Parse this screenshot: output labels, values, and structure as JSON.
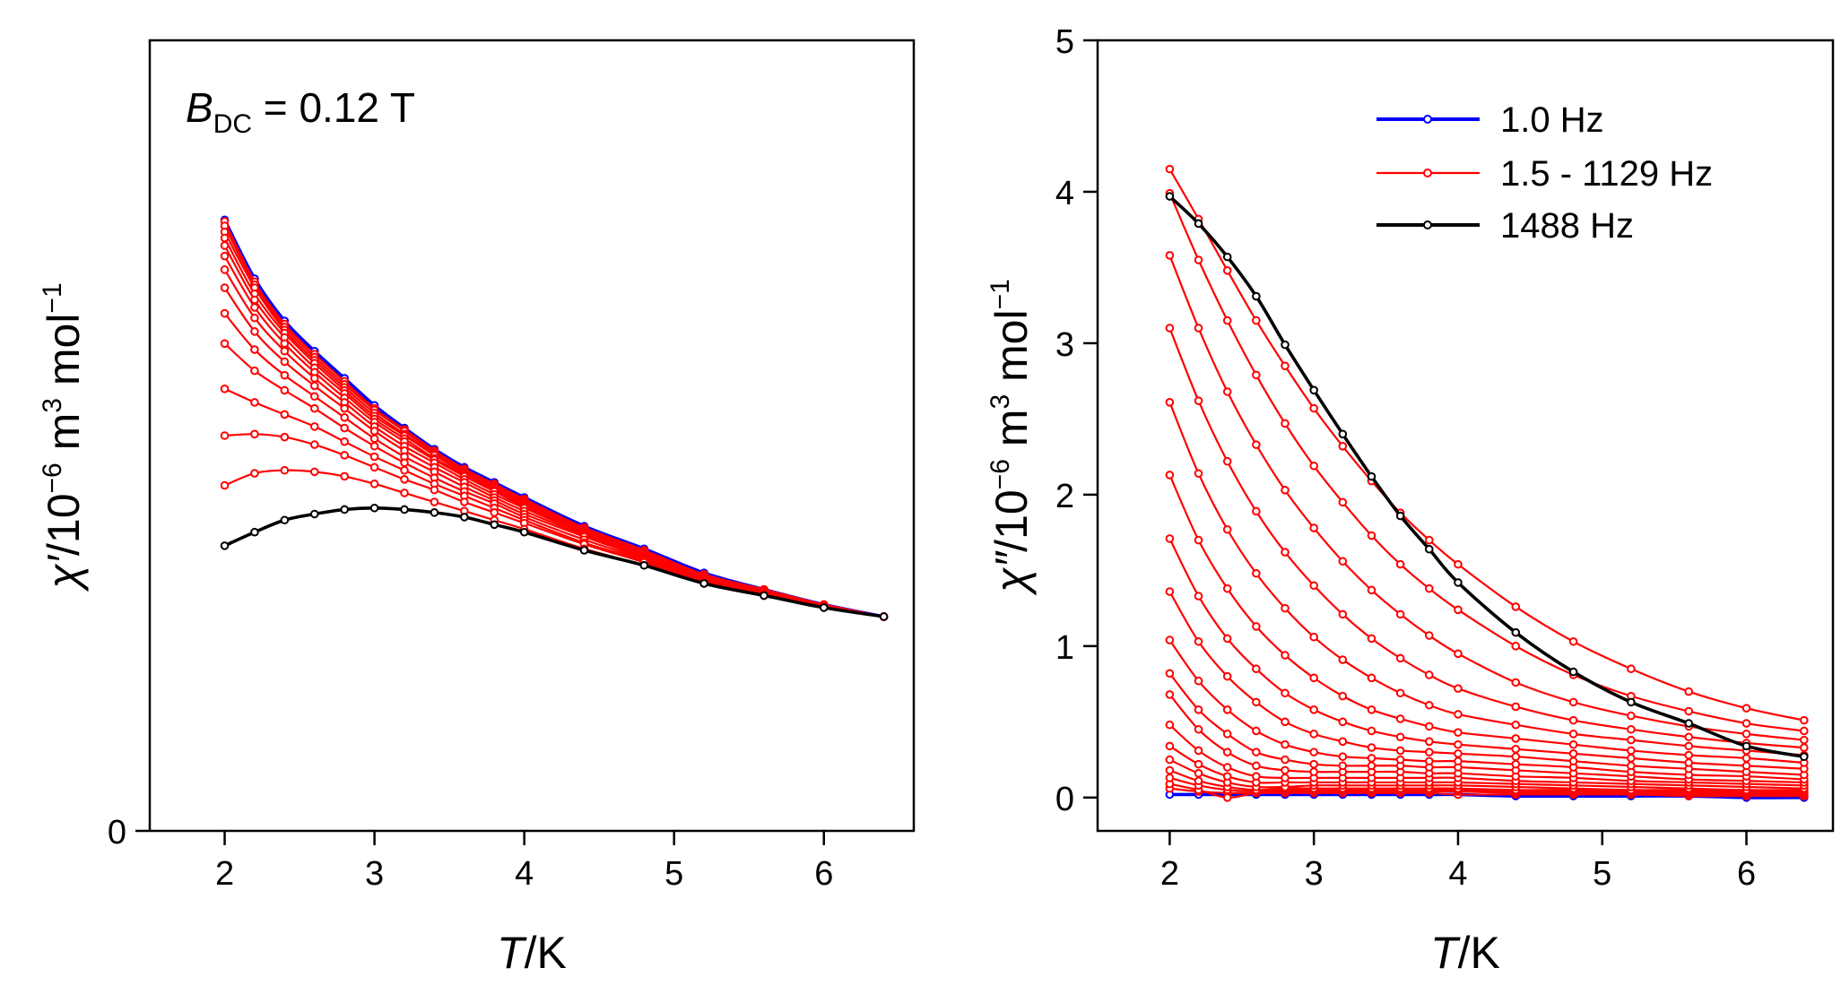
{
  "chart_data": [
    {
      "type": "line",
      "title": "",
      "xlabel_italic": "T",
      "xlabel_unit": "/K",
      "ylabel_symbol": "χ′",
      "ylabel_text": "/10",
      "ylabel_exp1": "−6",
      "ylabel_mid": " m",
      "ylabel_exp2": "3",
      "ylabel_mid2": " mol",
      "ylabel_exp3": "−1",
      "annotation_b": "B",
      "annotation_sub": "DC",
      "annotation_rest": " = 0.12 T",
      "xlim": [
        1.5,
        6.6
      ],
      "ylim": [
        0,
        5.24
      ],
      "xticks": [
        "2",
        "3",
        "4",
        "5",
        "6"
      ],
      "yticks": [
        "0"
      ],
      "x": [
        2.0,
        2.2,
        2.4,
        2.6,
        2.8,
        3.0,
        3.2,
        3.4,
        3.6,
        3.8,
        4.0,
        4.4,
        4.8,
        5.2,
        5.6,
        6.0,
        6.4
      ],
      "series": [
        {
          "name": "1.0 Hz",
          "color": "#0000ff",
          "values": [
            4.05,
            3.66,
            3.38,
            3.18,
            3.0,
            2.82,
            2.67,
            2.53,
            2.41,
            2.31,
            2.21,
            2.02,
            1.87,
            1.71,
            1.6,
            1.5,
            1.42
          ]
        },
        {
          "name": "1.5 - 1129 Hz",
          "color": "#ff0000",
          "values": [
            4.04,
            3.64,
            3.36,
            3.16,
            2.98,
            2.8,
            2.66,
            2.52,
            2.4,
            2.3,
            2.2,
            2.01,
            1.86,
            1.7,
            1.6,
            1.5,
            1.42
          ]
        },
        {
          "name": "",
          "color": "#ff0000",
          "values": [
            4.01,
            3.62,
            3.34,
            3.14,
            2.96,
            2.79,
            2.65,
            2.51,
            2.39,
            2.29,
            2.19,
            2.01,
            1.86,
            1.7,
            1.6,
            1.5,
            1.42
          ]
        },
        {
          "name": "",
          "color": "#ff0000",
          "values": [
            3.97,
            3.6,
            3.32,
            3.12,
            2.94,
            2.77,
            2.63,
            2.5,
            2.38,
            2.28,
            2.18,
            2.0,
            1.85,
            1.7,
            1.6,
            1.5,
            1.42
          ]
        },
        {
          "name": "",
          "color": "#ff0000",
          "values": [
            3.93,
            3.56,
            3.3,
            3.1,
            2.92,
            2.75,
            2.62,
            2.49,
            2.37,
            2.27,
            2.17,
            2.0,
            1.85,
            1.69,
            1.59,
            1.5,
            1.42
          ]
        },
        {
          "name": "",
          "color": "#ff0000",
          "values": [
            3.88,
            3.52,
            3.27,
            3.07,
            2.9,
            2.73,
            2.6,
            2.47,
            2.36,
            2.26,
            2.16,
            1.99,
            1.84,
            1.69,
            1.59,
            1.5,
            1.42
          ]
        },
        {
          "name": "",
          "color": "#ff0000",
          "values": [
            3.81,
            3.47,
            3.23,
            3.04,
            2.87,
            2.71,
            2.58,
            2.46,
            2.35,
            2.25,
            2.15,
            1.98,
            1.84,
            1.69,
            1.59,
            1.5,
            1.42
          ]
        },
        {
          "name": "",
          "color": "#ff0000",
          "values": [
            3.72,
            3.4,
            3.18,
            3.0,
            2.84,
            2.68,
            2.55,
            2.44,
            2.33,
            2.23,
            2.14,
            1.97,
            1.83,
            1.68,
            1.59,
            1.5,
            1.42
          ]
        },
        {
          "name": "",
          "color": "#ff0000",
          "values": [
            3.6,
            3.31,
            3.11,
            2.95,
            2.8,
            2.65,
            2.52,
            2.41,
            2.31,
            2.21,
            2.12,
            1.96,
            1.82,
            1.68,
            1.58,
            1.49,
            1.42
          ]
        },
        {
          "name": "",
          "color": "#ff0000",
          "values": [
            3.43,
            3.19,
            3.02,
            2.88,
            2.74,
            2.6,
            2.48,
            2.38,
            2.28,
            2.19,
            2.1,
            1.95,
            1.81,
            1.67,
            1.58,
            1.49,
            1.42
          ]
        },
        {
          "name": "",
          "color": "#ff0000",
          "values": [
            3.23,
            3.05,
            2.92,
            2.8,
            2.67,
            2.55,
            2.44,
            2.34,
            2.25,
            2.17,
            2.08,
            1.93,
            1.8,
            1.66,
            1.57,
            1.49,
            1.42
          ]
        },
        {
          "name": "",
          "color": "#ff0000",
          "values": [
            2.93,
            2.84,
            2.76,
            2.68,
            2.58,
            2.48,
            2.39,
            2.3,
            2.22,
            2.14,
            2.06,
            1.91,
            1.79,
            1.65,
            1.57,
            1.49,
            1.42
          ]
        },
        {
          "name": "",
          "color": "#ff0000",
          "values": [
            2.62,
            2.63,
            2.61,
            2.56,
            2.49,
            2.41,
            2.33,
            2.26,
            2.18,
            2.11,
            2.04,
            1.9,
            1.78,
            1.65,
            1.56,
            1.49,
            1.42
          ]
        },
        {
          "name": "",
          "color": "#ff0000",
          "values": [
            2.29,
            2.37,
            2.39,
            2.38,
            2.35,
            2.3,
            2.24,
            2.18,
            2.12,
            2.06,
            2.0,
            1.87,
            1.76,
            1.64,
            1.56,
            1.48,
            1.42
          ]
        },
        {
          "name": "1488 Hz",
          "color": "#000000",
          "values": [
            1.89,
            1.98,
            2.06,
            2.1,
            2.13,
            2.14,
            2.13,
            2.11,
            2.08,
            2.03,
            1.98,
            1.86,
            1.76,
            1.64,
            1.56,
            1.48,
            1.42
          ]
        }
      ]
    },
    {
      "type": "line",
      "title": "",
      "xlabel_italic": "T",
      "xlabel_unit": "/K",
      "ylabel_symbol": "χ″",
      "ylabel_text": "/10",
      "ylabel_exp1": "−6",
      "ylabel_mid": " m",
      "ylabel_exp2": "3",
      "ylabel_mid2": " mol",
      "ylabel_exp3": "−1",
      "xlim": [
        1.5,
        6.6
      ],
      "ylim": [
        -0.22,
        5.0
      ],
      "xticks": [
        "2",
        "3",
        "4",
        "5",
        "6"
      ],
      "yticks": [
        "0",
        "1",
        "2",
        "3",
        "4",
        "5"
      ],
      "legend": [
        "1.0 Hz",
        "1.5 - 1129  Hz",
        "1488 Hz"
      ],
      "legend_position": "top-right",
      "x": [
        2.0,
        2.2,
        2.4,
        2.6,
        2.8,
        3.0,
        3.2,
        3.4,
        3.6,
        3.8,
        4.0,
        4.4,
        4.8,
        5.2,
        5.6,
        6.0,
        6.4
      ],
      "series": [
        {
          "name": "1.0 Hz",
          "color": "#0000ff",
          "values": [
            0.02,
            0.02,
            0.02,
            0.02,
            0.02,
            0.02,
            0.02,
            0.02,
            0.02,
            0.02,
            0.02,
            0.01,
            0.01,
            0.01,
            0.01,
            0.0,
            0.0
          ]
        },
        {
          "name": "1.5 - 1129 Hz",
          "color": "#ff0000",
          "values": [
            0.06,
            0.04,
            0.03,
            0.03,
            0.03,
            0.03,
            0.03,
            0.03,
            0.03,
            0.03,
            0.02,
            0.02,
            0.02,
            0.02,
            0.01,
            0.01,
            0.01
          ]
        },
        {
          "name": "",
          "color": "#ff0000",
          "values": [
            0.09,
            0.05,
            0.0,
            0.03,
            0.04,
            0.04,
            0.04,
            0.04,
            0.04,
            0.04,
            0.04,
            0.03,
            0.03,
            0.02,
            0.02,
            0.02,
            0.01
          ]
        },
        {
          "name": "",
          "color": "#ff0000",
          "values": [
            0.13,
            0.08,
            0.05,
            0.04,
            0.05,
            0.05,
            0.05,
            0.05,
            0.05,
            0.05,
            0.05,
            0.04,
            0.04,
            0.03,
            0.03,
            0.02,
            0.02
          ]
        },
        {
          "name": "",
          "color": "#ff0000",
          "values": [
            0.18,
            0.11,
            0.07,
            0.05,
            0.06,
            0.06,
            0.06,
            0.06,
            0.06,
            0.06,
            0.06,
            0.05,
            0.05,
            0.04,
            0.04,
            0.03,
            0.03
          ]
        },
        {
          "name": "",
          "color": "#ff0000",
          "values": [
            0.25,
            0.16,
            0.1,
            0.07,
            0.07,
            0.08,
            0.08,
            0.08,
            0.08,
            0.08,
            0.08,
            0.07,
            0.06,
            0.05,
            0.05,
            0.04,
            0.04
          ]
        },
        {
          "name": "",
          "color": "#ff0000",
          "values": [
            0.34,
            0.22,
            0.14,
            0.1,
            0.1,
            0.1,
            0.1,
            0.1,
            0.1,
            0.1,
            0.1,
            0.09,
            0.08,
            0.07,
            0.06,
            0.05,
            0.05
          ]
        },
        {
          "name": "",
          "color": "#ff0000",
          "values": [
            0.48,
            0.31,
            0.2,
            0.14,
            0.13,
            0.13,
            0.13,
            0.13,
            0.13,
            0.13,
            0.13,
            0.11,
            0.1,
            0.09,
            0.08,
            0.07,
            0.06
          ]
        },
        {
          "name": "",
          "color": "#ff0000",
          "values": [
            0.68,
            0.45,
            0.3,
            0.21,
            0.18,
            0.17,
            0.17,
            0.17,
            0.17,
            0.16,
            0.16,
            0.14,
            0.13,
            0.11,
            0.1,
            0.09,
            0.08
          ]
        },
        {
          "name": "",
          "color": "#ff0000",
          "values": [
            0.82,
            0.58,
            0.42,
            0.3,
            0.25,
            0.22,
            0.21,
            0.21,
            0.21,
            0.2,
            0.2,
            0.18,
            0.16,
            0.14,
            0.12,
            0.11,
            0.1
          ]
        },
        {
          "name": "",
          "color": "#ff0000",
          "values": [
            1.04,
            0.77,
            0.58,
            0.44,
            0.35,
            0.3,
            0.27,
            0.26,
            0.25,
            0.24,
            0.24,
            0.22,
            0.2,
            0.17,
            0.15,
            0.14,
            0.12
          ]
        },
        {
          "name": "",
          "color": "#ff0000",
          "values": [
            1.36,
            1.03,
            0.8,
            0.63,
            0.5,
            0.42,
            0.37,
            0.33,
            0.31,
            0.3,
            0.29,
            0.27,
            0.24,
            0.21,
            0.19,
            0.17,
            0.15
          ]
        },
        {
          "name": "",
          "color": "#ff0000",
          "values": [
            1.71,
            1.33,
            1.05,
            0.85,
            0.69,
            0.58,
            0.5,
            0.44,
            0.4,
            0.37,
            0.35,
            0.32,
            0.29,
            0.26,
            0.23,
            0.21,
            0.19
          ]
        },
        {
          "name": "",
          "color": "#ff0000",
          "values": [
            2.13,
            1.7,
            1.38,
            1.13,
            0.94,
            0.79,
            0.67,
            0.58,
            0.52,
            0.47,
            0.43,
            0.39,
            0.35,
            0.31,
            0.28,
            0.26,
            0.23
          ]
        },
        {
          "name": "",
          "color": "#ff0000",
          "values": [
            2.61,
            2.14,
            1.77,
            1.48,
            1.25,
            1.06,
            0.91,
            0.79,
            0.69,
            0.61,
            0.55,
            0.48,
            0.42,
            0.38,
            0.34,
            0.31,
            0.28
          ]
        },
        {
          "name": "",
          "color": "#ff0000",
          "values": [
            3.1,
            2.62,
            2.22,
            1.89,
            1.62,
            1.4,
            1.21,
            1.05,
            0.92,
            0.81,
            0.72,
            0.6,
            0.51,
            0.45,
            0.4,
            0.36,
            0.33
          ]
        },
        {
          "name": "",
          "color": "#ff0000",
          "values": [
            3.58,
            3.1,
            2.68,
            2.33,
            2.03,
            1.78,
            1.56,
            1.37,
            1.21,
            1.07,
            0.95,
            0.76,
            0.63,
            0.54,
            0.47,
            0.42,
            0.38
          ]
        },
        {
          "name": "",
          "color": "#ff0000",
          "values": [
            3.99,
            3.55,
            3.15,
            2.79,
            2.47,
            2.19,
            1.95,
            1.73,
            1.54,
            1.38,
            1.24,
            1.0,
            0.81,
            0.67,
            0.57,
            0.49,
            0.44
          ]
        },
        {
          "name": "",
          "color": "#ff0000",
          "values": [
            4.15,
            3.82,
            3.48,
            3.15,
            2.85,
            2.57,
            2.32,
            2.09,
            1.88,
            1.7,
            1.54,
            1.26,
            1.03,
            0.85,
            0.7,
            0.59,
            0.51
          ]
        },
        {
          "name": "1488 Hz",
          "color": "#000000",
          "values": [
            3.97,
            3.79,
            3.57,
            3.31,
            2.99,
            2.69,
            2.4,
            2.12,
            1.86,
            1.64,
            1.42,
            1.09,
            0.83,
            0.63,
            0.49,
            0.34,
            0.27
          ]
        }
      ]
    }
  ]
}
